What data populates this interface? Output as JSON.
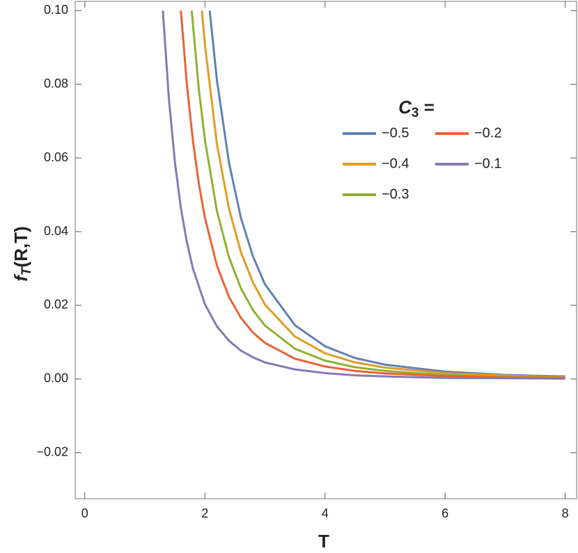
{
  "chart_data": {
    "type": "line",
    "xlabel": "T",
    "ylabel": [
      "f",
      "T",
      "(R,T)"
    ],
    "legend_title": [
      "C",
      "3",
      " ="
    ],
    "xlim": [
      -0.16,
      8.19
    ],
    "ylim": [
      -0.0325,
      0.1025
    ],
    "xticks": [
      0,
      2,
      4,
      6,
      8
    ],
    "yticks": [
      {
        "value": 0.1,
        "label": "0.10"
      },
      {
        "value": 0.08,
        "label": "0.08"
      },
      {
        "value": 0.06,
        "label": "0.06"
      },
      {
        "value": 0.04,
        "label": "0.04"
      },
      {
        "value": 0.02,
        "label": "0.02"
      },
      {
        "value": 0,
        "label": "0.00"
      },
      {
        "value": -0.02,
        "label": "−0.02"
      }
    ],
    "series": [
      {
        "name": "−0.5",
        "color": "#5e81b5",
        "x": [
          2.08,
          2.2,
          2.4,
          2.6,
          2.8,
          3,
          3.5,
          4,
          4.5,
          5,
          6,
          7,
          8
        ],
        "values": [
          0.1,
          0.0811,
          0.0588,
          0.0437,
          0.0333,
          0.0257,
          0.0146,
          0.0089,
          0.0057,
          0.0039,
          0.002,
          0.0011,
          0.0007
        ]
      },
      {
        "name": "−0.4",
        "color": "#e19c24",
        "x": [
          1.95,
          2,
          2.2,
          2.4,
          2.6,
          2.8,
          3,
          3.5,
          4,
          4.5,
          5,
          6,
          7,
          8
        ],
        "values": [
          0.1,
          0.0908,
          0.0638,
          0.0463,
          0.0344,
          0.0262,
          0.0202,
          0.0115,
          0.007,
          0.0045,
          0.0031,
          0.0016,
          0.0009,
          0.0005
        ]
      },
      {
        "name": "−0.3",
        "color": "#8fb032",
        "x": [
          1.78,
          1.9,
          2,
          2.2,
          2.4,
          2.6,
          2.8,
          3,
          3.5,
          4,
          4.5,
          5,
          6,
          7,
          8
        ],
        "values": [
          0.1,
          0.0785,
          0.0649,
          0.0456,
          0.0331,
          0.0246,
          0.0187,
          0.0145,
          0.0082,
          0.005,
          0.0032,
          0.0022,
          0.0011,
          0.0006,
          0.0004
        ]
      },
      {
        "name": "−0.2",
        "color": "#eb6235",
        "x": [
          1.6,
          1.7,
          1.8,
          1.9,
          2,
          2.2,
          2.4,
          2.6,
          2.8,
          3,
          3.5,
          4,
          4.5,
          5,
          6,
          7,
          8
        ],
        "values": [
          0.1,
          0.0799,
          0.0647,
          0.0529,
          0.0438,
          0.0308,
          0.0223,
          0.0166,
          0.0126,
          0.0098,
          0.0055,
          0.0034,
          0.0022,
          0.0015,
          0.0008,
          0.0004,
          0.0003
        ]
      },
      {
        "name": "−0.1",
        "color": "#8778b3",
        "x": [
          1.3,
          1.4,
          1.5,
          1.6,
          1.7,
          1.8,
          2,
          2.2,
          2.4,
          2.6,
          2.8,
          3,
          3.5,
          4,
          4.5,
          5,
          6,
          7,
          8
        ],
        "values": [
          0.1,
          0.0761,
          0.0589,
          0.0464,
          0.0371,
          0.03,
          0.0203,
          0.0143,
          0.0104,
          0.0077,
          0.0059,
          0.0045,
          0.0026,
          0.0016,
          0.001,
          0.0007,
          0.0003,
          0.0002,
          0.0001
        ]
      }
    ]
  }
}
